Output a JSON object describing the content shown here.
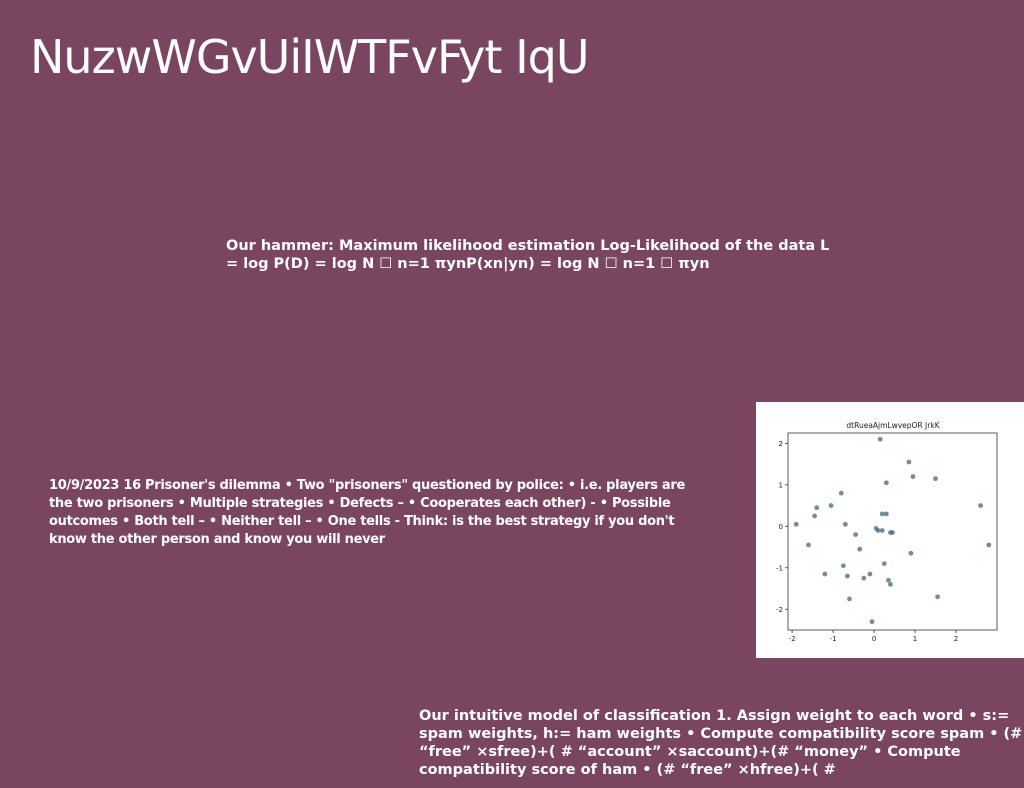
{
  "slide": {
    "title": "NuzwWGvUiIWTFvFyt IqU",
    "mle_text": "Our hammer: Maximum likelihood estimation Log-Likelihood of the data L = log P(D) = log N ☐ n=1 πynP(xn|yn) = log N ☐ n=1 ☐ πyn",
    "prisoner_text": "10/9/2023 16 Prisoner's dilemma • Two \"prisoners\" questioned by police: • i.e. players are the two prisoners • Multiple strategies • Defects – • Cooperates each other) - • Possible outcomes • Both tell – • Neither tell – • One tells - Think: is the best strategy if you don't know the other person and know you will never",
    "classification_text": "Our intuitive model of classification 1. Assign weight to each word • s:= spam weights, h:= ham weights • Compute compatibility score spam • (# “free” ×sfree)+( # “account” ×saccount)+(# “money” • Compute compatibility score of ham • (# “free” ×hfree)+( #"
  },
  "chart_data": {
    "type": "scatter",
    "title": "dtRueaAjmLwvepOR JrkK",
    "xlabel": "",
    "ylabel": "",
    "xlim": [
      -2.1,
      3.0
    ],
    "ylim": [
      -2.5,
      2.25
    ],
    "x_ticks": [
      "-2",
      "-1",
      "0",
      "1",
      "2"
    ],
    "y_ticks": [
      "-2",
      "-1",
      "0",
      "1",
      "2"
    ],
    "grid": false,
    "point_color": "#3b6378",
    "series": [
      {
        "x": [
          0.15,
          0.85,
          0.95,
          1.5,
          2.6,
          2.8,
          -1.9,
          -1.6,
          -1.45,
          -1.4,
          -1.2,
          -1.05,
          -0.8,
          -0.75,
          -0.7,
          -0.65,
          -0.6,
          -0.45,
          -0.35,
          -0.25,
          -0.1,
          -0.05,
          0.05,
          0.1,
          0.2,
          0.25,
          0.3,
          0.35,
          0.4,
          0.45,
          0.2,
          0.4,
          0.9,
          1.55,
          0.3
        ],
        "y": [
          2.1,
          1.55,
          1.2,
          1.15,
          0.5,
          -0.45,
          0.05,
          -0.45,
          0.25,
          0.45,
          -1.15,
          0.5,
          0.8,
          -0.95,
          0.05,
          -1.2,
          -1.75,
          -0.2,
          -0.55,
          -1.25,
          -1.15,
          -2.3,
          -0.05,
          -0.1,
          0.3,
          -0.9,
          1.05,
          -1.3,
          -1.4,
          -0.15,
          -0.1,
          -0.15,
          -0.65,
          -1.7,
          0.3
        ]
      }
    ]
  }
}
